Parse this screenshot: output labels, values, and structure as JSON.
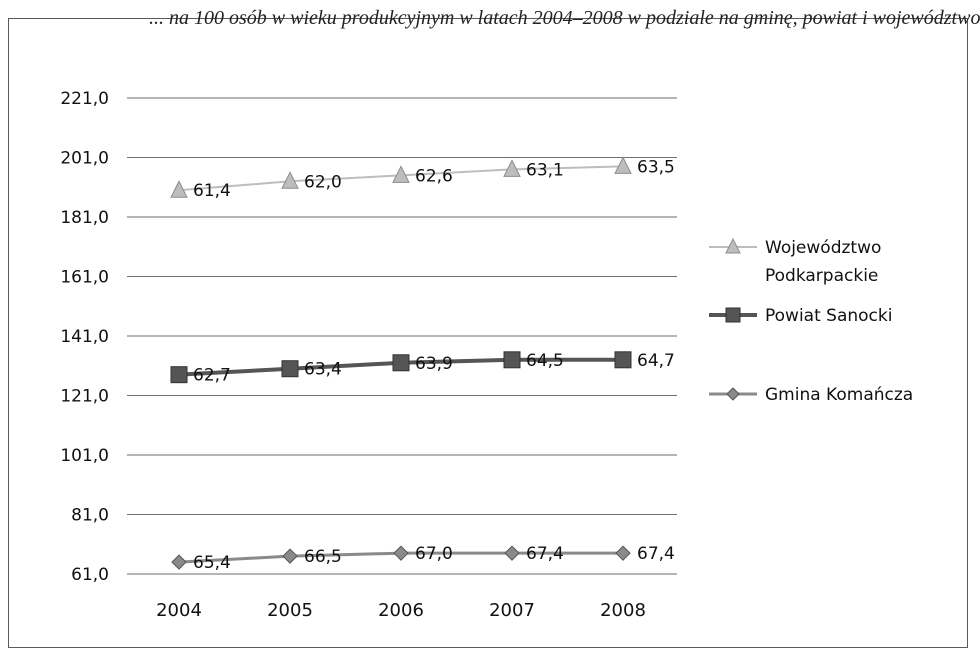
{
  "header": {
    "cropped_caption": "... na 100 osób w wieku produkcyjnym w latach 2004–2008 w podziale na gminę, powiat i województwo"
  },
  "chart_data": {
    "type": "line",
    "categories": [
      "2004",
      "2005",
      "2006",
      "2007",
      "2008"
    ],
    "y_ticks": [
      "221,0",
      "201,0",
      "181,0",
      "161,0",
      "141,0",
      "121,0",
      "101,0",
      "81,0",
      "61,0"
    ],
    "ylim": [
      61,
      221
    ],
    "grid": true,
    "legend_position": "right",
    "series": [
      {
        "name": "Województwo Podkarpackie",
        "name_lines": [
          "Województwo",
          "Podkarpackie"
        ],
        "marker": "triangle",
        "color": "#bdbdbd",
        "plot_values": [
          190,
          193,
          195,
          197,
          198
        ],
        "labels": [
          "61,4",
          "62,0",
          "62,6",
          "63,1",
          "63,5"
        ]
      },
      {
        "name": "Powiat Sanocki",
        "name_lines": [
          "Powiat Sanocki"
        ],
        "marker": "square",
        "color": "#555555",
        "plot_values": [
          128,
          130,
          132,
          133,
          133
        ],
        "labels": [
          "62,7",
          "63,4",
          "63,9",
          "64,5",
          "64,7"
        ]
      },
      {
        "name": "Gmina Komańcza",
        "name_lines": [
          "Gmina Komańcza"
        ],
        "marker": "diamond",
        "color": "#8a8a8a",
        "plot_values": [
          65,
          67,
          68,
          68,
          68
        ],
        "labels": [
          "65,4",
          "66,5",
          "67,0",
          "67,4",
          "67,4"
        ]
      }
    ]
  }
}
